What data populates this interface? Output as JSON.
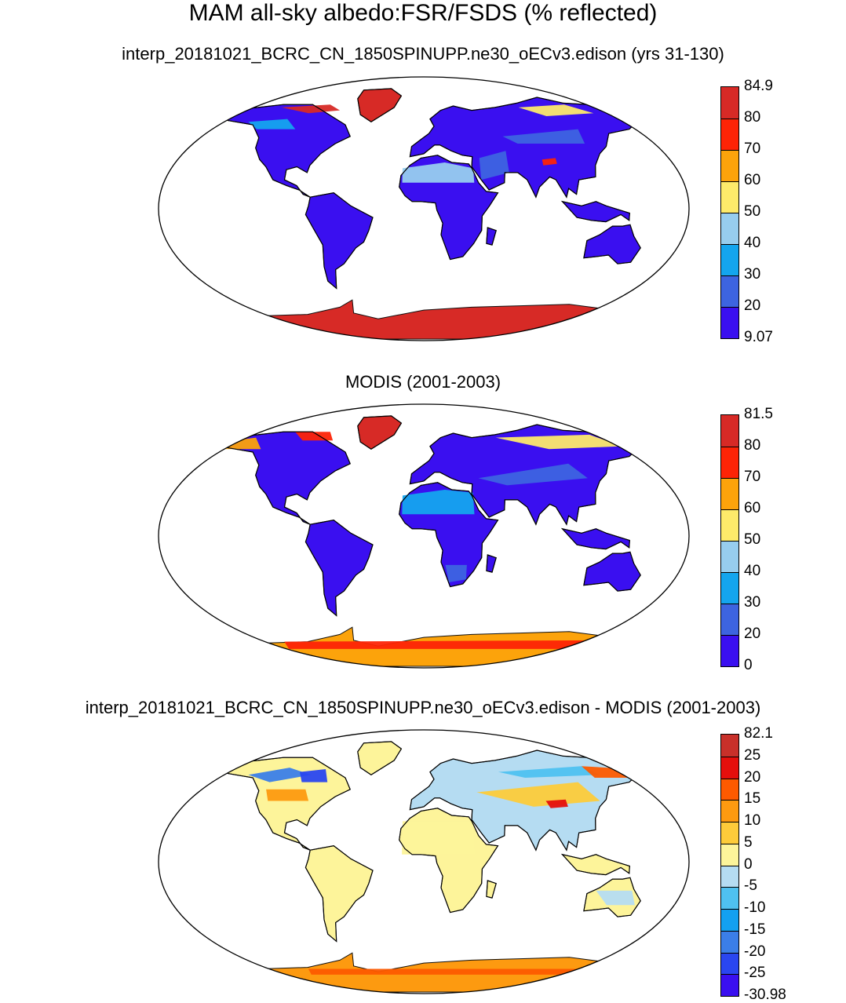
{
  "title": "MAM all-sky albedo:FSR/FSDS (% reflected)",
  "panels": [
    {
      "title": "interp_20181021_BCRC_CN_1850SPINUPP.ne30_oECv3.edison (yrs 31-130)",
      "colorbar": {
        "colors": [
          "#3a0ff0",
          "#3d64e0",
          "#14a5ee",
          "#97cdee",
          "#fdea6a",
          "#fca30b",
          "#fd2406",
          "#d72a26"
        ],
        "labels": [
          "9.07",
          "20",
          "30",
          "40",
          "50",
          "60",
          "70",
          "80",
          "84.9"
        ]
      }
    },
    {
      "title": "MODIS (2001-2003)",
      "colorbar": {
        "colors": [
          "#3a0ff0",
          "#3d64e0",
          "#14a5ee",
          "#97cdee",
          "#fdea6a",
          "#fca30b",
          "#fd2406",
          "#d72a26"
        ],
        "labels": [
          "0",
          "20",
          "30",
          "40",
          "50",
          "60",
          "70",
          "80",
          "81.5"
        ]
      }
    },
    {
      "title": "interp_20181021_BCRC_CN_1850SPINUPP.ne30_oECv3.edison - MODIS (2001-2003)",
      "colorbar": {
        "colors": [
          "#3a0ff0",
          "#2a46f0",
          "#3b7ee8",
          "#13a0f0",
          "#4fc1f0",
          "#b5dcf2",
          "#fdf49a",
          "#fdcb3a",
          "#fd9a10",
          "#fd5a00",
          "#e50f0c",
          "#c8302a"
        ],
        "labels": [
          "-30.98",
          "-25",
          "-20",
          "-15",
          "-10",
          "-5",
          "0",
          "5",
          "10",
          "15",
          "20",
          "25",
          "82.1"
        ]
      }
    }
  ]
}
